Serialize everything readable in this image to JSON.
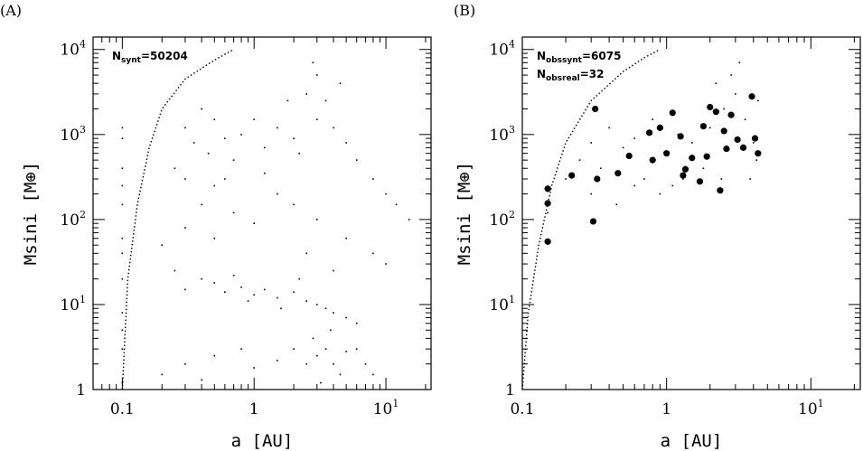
{
  "chart_data": [
    {
      "type": "scatter",
      "panel_label": "(A)",
      "xlabel": "a [AU]",
      "ylabel": "Msini [M⊕]",
      "x_scale": "log",
      "y_scale": "log",
      "xlim": [
        0.06,
        22
      ],
      "ylim": [
        1,
        14000
      ],
      "x_ticks": [
        {
          "value": 0.1,
          "label": "0.1"
        },
        {
          "value": 1,
          "label": "1"
        },
        {
          "value": 10,
          "label": "10",
          "sup": "1"
        }
      ],
      "y_ticks": [
        {
          "value": 1,
          "label": "1"
        },
        {
          "value": 10,
          "label": "10",
          "sup": "1"
        },
        {
          "value": 100,
          "label": "10",
          "sup": "2"
        },
        {
          "value": 1000,
          "label": "10",
          "sup": "3"
        },
        {
          "value": 10000,
          "label": "10",
          "sup": "4"
        }
      ],
      "annotations": [
        {
          "main": "N",
          "sub": "synt",
          "value": "=50204"
        }
      ],
      "boundary_curve": [
        [
          0.1,
          1
        ],
        [
          0.11,
          20
        ],
        [
          0.13,
          150
        ],
        [
          0.16,
          700
        ],
        [
          0.2,
          2000
        ],
        [
          0.3,
          4500
        ],
        [
          0.5,
          7500
        ],
        [
          0.7,
          10000
        ]
      ],
      "series": [
        {
          "marker": "dot",
          "points": [
            [
              0.1,
              1.2
            ],
            [
              0.1,
              3
            ],
            [
              0.1,
              8
            ],
            [
              0.1,
              20
            ],
            [
              0.1,
              60
            ],
            [
              0.1,
              150
            ],
            [
              0.1,
              400
            ],
            [
              0.1,
              900
            ],
            [
              0.1,
              1200
            ],
            [
              0.1,
              5
            ],
            [
              0.1,
              40
            ],
            [
              0.1,
              250
            ],
            [
              0.3,
              1200
            ],
            [
              0.35,
              800
            ],
            [
              0.4,
              2000
            ],
            [
              0.45,
              600
            ],
            [
              0.5,
              1500
            ],
            [
              0.6,
              900
            ],
            [
              0.25,
              400
            ],
            [
              0.3,
              300
            ],
            [
              0.5,
              250
            ],
            [
              0.7,
              500
            ],
            [
              0.8,
              1000
            ],
            [
              1,
              1500
            ],
            [
              1.2,
              700
            ],
            [
              1.5,
              1200
            ],
            [
              2,
              900
            ],
            [
              3,
              1500
            ],
            [
              2.5,
              3000
            ],
            [
              3,
              5000
            ],
            [
              2.8,
              7000
            ],
            [
              3.5,
              2500
            ],
            [
              4,
              1200
            ],
            [
              5,
              800
            ],
            [
              6,
              500
            ],
            [
              8,
              300
            ],
            [
              10,
              200
            ],
            [
              12,
              150
            ],
            [
              15,
              100
            ],
            [
              2.2,
              600
            ],
            [
              1.8,
              2500
            ],
            [
              4.5,
              4000
            ],
            [
              0.3,
              15
            ],
            [
              0.4,
              20
            ],
            [
              0.5,
              18
            ],
            [
              0.6,
              14
            ],
            [
              0.8,
              16
            ],
            [
              1,
              13
            ],
            [
              1.2,
              15
            ],
            [
              1.5,
              12
            ],
            [
              2,
              14
            ],
            [
              2.5,
              11
            ],
            [
              3,
              10
            ],
            [
              3.5,
              9
            ],
            [
              4,
              8
            ],
            [
              5,
              7
            ],
            [
              6,
              6
            ],
            [
              0.25,
              25
            ],
            [
              0.7,
              22
            ],
            [
              0.9,
              11
            ],
            [
              1.6,
              9
            ],
            [
              2.2,
              20
            ],
            [
              0.2,
              1.5
            ],
            [
              0.3,
              2
            ],
            [
              0.4,
              1.3
            ],
            [
              0.5,
              2.5
            ],
            [
              0.8,
              3
            ],
            [
              1,
              1.8
            ],
            [
              1.5,
              2.2
            ],
            [
              2,
              3
            ],
            [
              2.5,
              2
            ],
            [
              3,
              2.5
            ],
            [
              3.5,
              3
            ],
            [
              4,
              2
            ],
            [
              4.5,
              1.5
            ],
            [
              5,
              2.8
            ],
            [
              3.2,
              1.2
            ],
            [
              2.8,
              4
            ],
            [
              3.8,
              5
            ],
            [
              6,
              3
            ],
            [
              7,
              2
            ],
            [
              8,
              1.5
            ],
            [
              0.2,
              50
            ],
            [
              0.3,
              80
            ],
            [
              0.5,
              60
            ],
            [
              0.7,
              120
            ],
            [
              1,
              90
            ],
            [
              1.5,
              200
            ],
            [
              2,
              150
            ],
            [
              3,
              100
            ],
            [
              5,
              60
            ],
            [
              8,
              40
            ],
            [
              0.4,
              150
            ],
            [
              0.6,
              300
            ],
            [
              1.2,
              350
            ],
            [
              2.5,
              40
            ],
            [
              4,
              25
            ],
            [
              10,
              30
            ]
          ]
        }
      ]
    },
    {
      "type": "scatter",
      "panel_label": "(B)",
      "xlabel": "a [AU]",
      "ylabel": "Msini [M⊕]",
      "x_scale": "log",
      "y_scale": "log",
      "xlim": [
        0.1,
        22
      ],
      "ylim": [
        1,
        14000
      ],
      "x_ticks": [
        {
          "value": 0.1,
          "label": "0.1"
        },
        {
          "value": 1,
          "label": "1"
        },
        {
          "value": 10,
          "label": "10",
          "sup": "1"
        }
      ],
      "y_ticks": [
        {
          "value": 1,
          "label": "1"
        },
        {
          "value": 10,
          "label": "10",
          "sup": "1"
        },
        {
          "value": 100,
          "label": "10",
          "sup": "2"
        },
        {
          "value": 1000,
          "label": "10",
          "sup": "3"
        },
        {
          "value": 10000,
          "label": "10",
          "sup": "4"
        }
      ],
      "annotations": [
        {
          "main": "N",
          "sub": "obssynt",
          "value": "=6075"
        },
        {
          "main": "N",
          "sub": "obsreal",
          "value": "=32"
        }
      ],
      "boundary_curve": [
        [
          0.1,
          1
        ],
        [
          0.11,
          8
        ],
        [
          0.13,
          50
        ],
        [
          0.16,
          250
        ],
        [
          0.2,
          800
        ],
        [
          0.3,
          2500
        ],
        [
          0.5,
          5500
        ],
        [
          0.7,
          8000
        ],
        [
          0.9,
          10000
        ]
      ],
      "series": [
        {
          "marker": "dot",
          "points": [
            [
              0.15,
              120
            ],
            [
              0.2,
              300
            ],
            [
              0.25,
              500
            ],
            [
              0.3,
              800
            ],
            [
              0.35,
              400
            ],
            [
              0.4,
              1200
            ],
            [
              0.5,
              700
            ],
            [
              0.6,
              900
            ],
            [
              0.7,
              300
            ],
            [
              0.8,
              1500
            ],
            [
              1,
              600
            ],
            [
              1.2,
              1000
            ],
            [
              1.5,
              800
            ],
            [
              2,
              1200
            ],
            [
              2.5,
              2000
            ],
            [
              3,
              3000
            ],
            [
              3.5,
              1500
            ],
            [
              4,
              800
            ],
            [
              4.2,
              500
            ],
            [
              2.8,
              5000
            ],
            [
              3.2,
              7000
            ],
            [
              2.2,
              4000
            ],
            [
              1.8,
              400
            ],
            [
              1.3,
              300
            ],
            [
              0.9,
              200
            ],
            [
              0.45,
              150
            ],
            [
              0.3,
              200
            ],
            [
              0.6,
              250
            ],
            [
              1.1,
              250
            ],
            [
              2.4,
              300
            ],
            [
              3.8,
              300
            ],
            [
              4.3,
              2500
            ]
          ]
        },
        {
          "marker": "big-dot",
          "points": [
            [
              0.15,
              230
            ],
            [
              0.15,
              155
            ],
            [
              0.15,
              55
            ],
            [
              0.22,
              330
            ],
            [
              0.31,
              95
            ],
            [
              0.32,
              2000
            ],
            [
              0.33,
              300
            ],
            [
              0.46,
              350
            ],
            [
              0.55,
              560
            ],
            [
              0.76,
              1050
            ],
            [
              0.9,
              1200
            ],
            [
              1.1,
              1800
            ],
            [
              0.8,
              500
            ],
            [
              1,
              600
            ],
            [
              1.25,
              950
            ],
            [
              1.3,
              330
            ],
            [
              1.35,
              390
            ],
            [
              1.5,
              530
            ],
            [
              1.7,
              280
            ],
            [
              1.8,
              1250
            ],
            [
              2,
              2100
            ],
            [
              2.2,
              1850
            ],
            [
              2.35,
              220
            ],
            [
              2.5,
              1100
            ],
            [
              2.6,
              680
            ],
            [
              2.8,
              1700
            ],
            [
              3.1,
              870
            ],
            [
              3.4,
              700
            ],
            [
              3.9,
              2800
            ],
            [
              4.1,
              900
            ],
            [
              4.3,
              600
            ],
            [
              1.9,
              550
            ]
          ]
        }
      ]
    }
  ]
}
